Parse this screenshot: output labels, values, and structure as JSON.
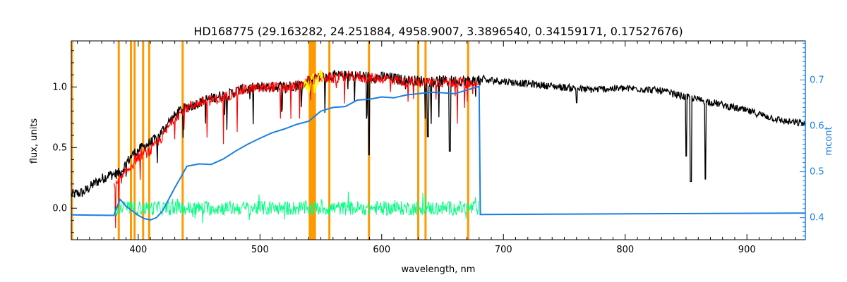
{
  "chart_data": {
    "type": "line",
    "title": "HD168775    (29.163282, 24.251884, 4958.9007, 3.3896540, 0.34159171, 0.17527676)",
    "xlabel": "wavelength, nm",
    "ylabel": "flux, units",
    "y2label": "mcont",
    "xlim": [
      345,
      948
    ],
    "ylim": [
      -0.26,
      1.38
    ],
    "y2lim": [
      0.352,
      0.785
    ],
    "xticks": [
      400,
      500,
      600,
      700,
      800,
      900
    ],
    "yticks": [
      0.0,
      0.5,
      1.0
    ],
    "yticklabels": [
      "0.0",
      "0.5",
      "1.0"
    ],
    "y2ticks": [
      0.4,
      0.5,
      0.6,
      0.7
    ],
    "y2ticklabels": [
      "0.4",
      "0.5",
      "0.6",
      "0.7"
    ],
    "grid": false,
    "colors": {
      "observed": "#000000",
      "model": "#ff0000",
      "residual": "#00ff80",
      "mcont": "#1a7fe0",
      "masked": "#ff9900",
      "highlight": "#ffff00",
      "right_axis": "#1a7fe0"
    },
    "masked_lines_nm": [
      345.5,
      384,
      394,
      397,
      404,
      409,
      436.5,
      557,
      589.5,
      630,
      636,
      671
    ],
    "masked_band_nm": [
      540,
      546
    ],
    "series": [
      {
        "role": "observed",
        "axis": "left",
        "x": [
          345,
          355,
          365,
          375,
          385,
          395,
          405,
          415,
          425,
          435,
          445,
          455,
          465,
          475,
          485,
          495,
          505,
          515,
          525,
          535,
          545,
          555,
          565,
          575,
          585,
          595,
          605,
          615,
          625,
          635,
          645,
          655,
          665,
          675,
          690,
          710,
          730,
          750,
          770,
          790,
          810,
          830,
          850,
          870,
          890,
          910,
          930,
          948
        ],
        "y": [
          0.12,
          0.14,
          0.22,
          0.28,
          0.3,
          0.45,
          0.52,
          0.58,
          0.72,
          0.82,
          0.86,
          0.9,
          0.93,
          0.95,
          0.99,
          1.0,
          1.01,
          1.01,
          1.02,
          1.03,
          1.09,
          1.1,
          1.1,
          1.1,
          1.1,
          1.09,
          1.09,
          1.07,
          1.06,
          1.06,
          1.06,
          1.06,
          1.06,
          1.06,
          1.06,
          1.04,
          1.02,
          1.0,
          0.98,
          0.99,
          0.99,
          0.97,
          0.92,
          0.88,
          0.83,
          0.78,
          0.72,
          0.7
        ]
      },
      {
        "role": "model",
        "axis": "left",
        "x": [
          380,
          390,
          400,
          410,
          420,
          430,
          440,
          450,
          460,
          470,
          480,
          490,
          500,
          510,
          520,
          530,
          540,
          550,
          560,
          570,
          580,
          590,
          600,
          610,
          620,
          630,
          640,
          650,
          660,
          670,
          680
        ],
        "y": [
          0.18,
          0.3,
          0.44,
          0.48,
          0.6,
          0.76,
          0.84,
          0.88,
          0.9,
          0.92,
          0.97,
          0.99,
          1.0,
          1.01,
          1.0,
          1.01,
          1.06,
          1.09,
          1.08,
          1.09,
          1.09,
          1.08,
          1.08,
          1.07,
          1.05,
          1.05,
          1.05,
          1.05,
          1.05,
          1.04,
          1.02
        ]
      },
      {
        "role": "residual",
        "axis": "left",
        "x": [
          380,
          680
        ],
        "y": [
          0.0,
          0.0
        ]
      },
      {
        "role": "mcont",
        "axis": "right",
        "x": [
          345,
          380,
          385,
          390,
          395,
          400,
          405,
          410,
          415,
          420,
          425,
          430,
          435,
          440,
          450,
          460,
          470,
          480,
          490,
          500,
          510,
          520,
          530,
          540,
          550,
          560,
          570,
          580,
          590,
          600,
          610,
          620,
          630,
          640,
          650,
          660,
          670,
          680,
          681,
          948
        ],
        "y": [
          0.406,
          0.405,
          0.44,
          0.425,
          0.415,
          0.405,
          0.398,
          0.395,
          0.4,
          0.415,
          0.44,
          0.465,
          0.488,
          0.512,
          0.517,
          0.516,
          0.528,
          0.545,
          0.56,
          0.573,
          0.585,
          0.593,
          0.603,
          0.61,
          0.632,
          0.64,
          0.642,
          0.656,
          0.658,
          0.663,
          0.661,
          0.667,
          0.67,
          0.673,
          0.672,
          0.67,
          0.678,
          0.686,
          0.407,
          0.41
        ]
      }
    ],
    "absorption_features": [
      {
        "x": 589.5,
        "y": 0.44
      },
      {
        "x": 638,
        "y": 0.59
      },
      {
        "x": 656,
        "y": 0.47
      },
      {
        "x": 760,
        "y": 0.87
      },
      {
        "x": 850,
        "y": 0.43
      },
      {
        "x": 854,
        "y": 0.22
      },
      {
        "x": 866,
        "y": 0.24
      }
    ]
  }
}
